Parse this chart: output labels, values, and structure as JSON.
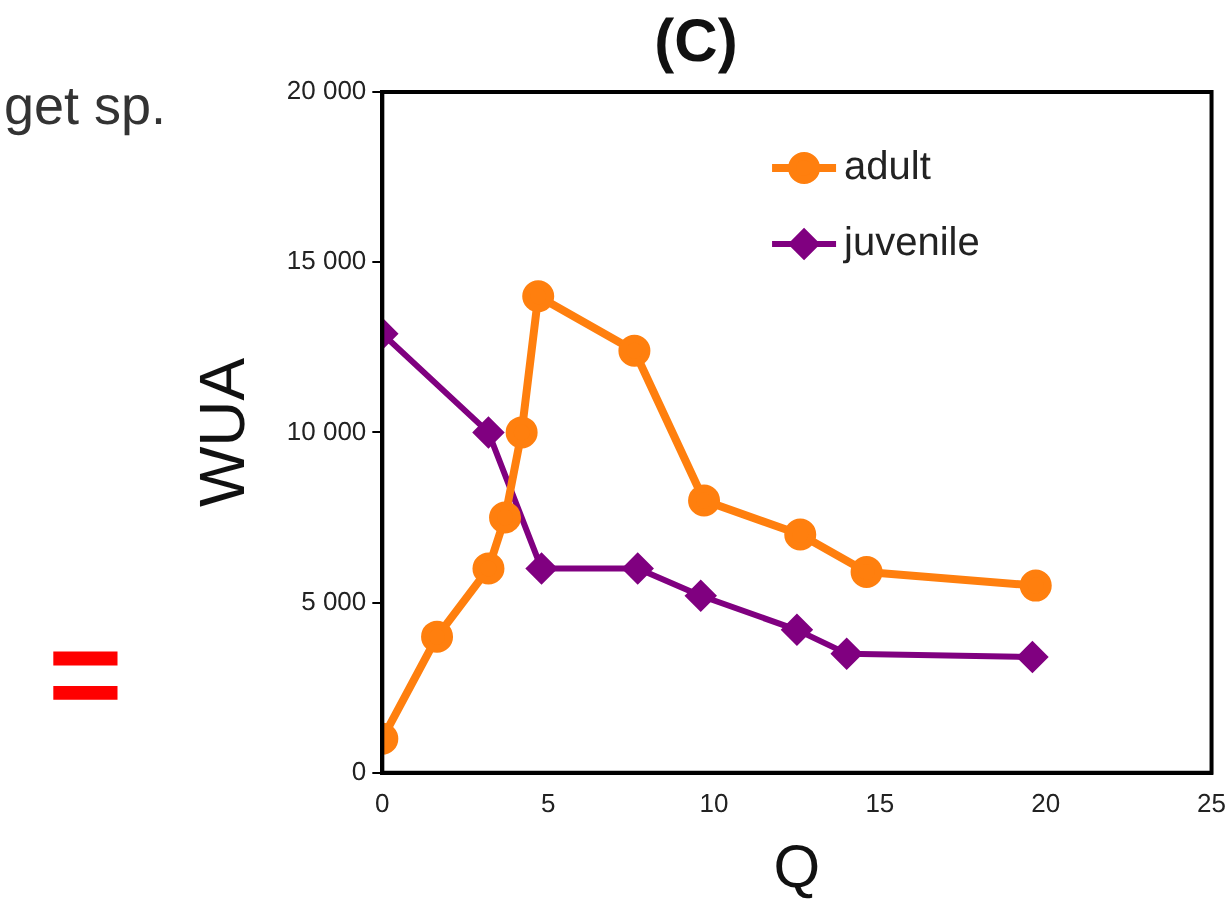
{
  "chart_data": {
    "type": "line",
    "title": "(C)",
    "xlabel": "Q",
    "ylabel": "WUA",
    "annotations": [
      "get sp.",
      "="
    ],
    "xlim": [
      0,
      25
    ],
    "xticks": [
      0,
      5,
      10,
      15,
      20,
      25
    ],
    "ylim": [
      0,
      20000
    ],
    "yticks": [
      0,
      {
        "value": 5000,
        "label": "5 000"
      },
      {
        "value": 10000,
        "label": "10 000"
      },
      {
        "value": 15000,
        "label": "15 000"
      },
      {
        "value": 20000,
        "label": "20 000"
      }
    ],
    "grid": false,
    "legend": "top right",
    "series": [
      {
        "name": "adult",
        "color": "#ff7f0e",
        "marker": "circle",
        "x": [
          0,
          1.65,
          3.2,
          3.7,
          4.2,
          4.7,
          7.6,
          9.7,
          12.6,
          14.6,
          19.7
        ],
        "values": [
          1000,
          4000,
          6000,
          7500,
          10000,
          14000,
          12400,
          8000,
          7000,
          5900,
          5500
        ]
      },
      {
        "name": "juvenile",
        "color": "#800080",
        "marker": "diamond",
        "x": [
          0,
          3.2,
          4.8,
          7.7,
          9.6,
          12.5,
          14.0,
          19.6
        ],
        "values": [
          12900,
          10000,
          6000,
          6000,
          5200,
          4200,
          3500,
          3400
        ]
      }
    ]
  }
}
